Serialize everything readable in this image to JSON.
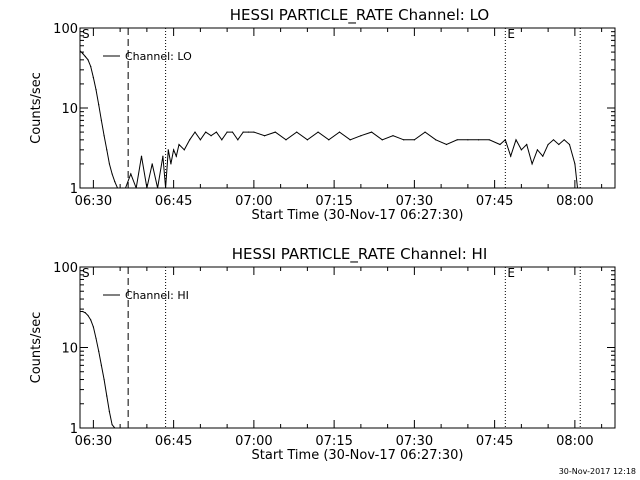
{
  "footer": {
    "timestamp": "30-Nov-2017 12:18"
  },
  "chart_data": [
    {
      "type": "line",
      "title": "HESSI PARTICLE_RATE Channel: LO",
      "xlabel": "Start Time (30-Nov-17 06:27:30)",
      "ylabel": "Counts/sec",
      "x_ticks": [
        "06:30",
        "06:45",
        "07:00",
        "07:15",
        "07:30",
        "07:45",
        "08:00"
      ],
      "y_ticks": [
        "1",
        "10",
        "100"
      ],
      "y_scale": "log",
      "xlim": [
        "06:27:30",
        "08:07:30"
      ],
      "ylim": [
        1,
        100
      ],
      "legend": {
        "label": "Channel: LO",
        "placement": "top-left"
      },
      "markers": [
        {
          "label": "S",
          "x": "06:27:30",
          "style": "solid"
        },
        {
          "x": "06:36:30",
          "style": "dashed"
        },
        {
          "x": "06:43:30",
          "style": "dotted"
        },
        {
          "label": "E",
          "x": "07:47:00",
          "style": "dotted"
        },
        {
          "x": "08:01:00",
          "style": "dotted"
        }
      ],
      "series": [
        {
          "x": [
            "06:27:30",
            "06:28:00",
            "06:28:30",
            "06:29:00",
            "06:29:30",
            "06:30:00",
            "06:30:30",
            "06:31:00",
            "06:31:30",
            "06:32:00",
            "06:32:30",
            "06:33:00",
            "06:33:30",
            "06:34:00",
            "06:34:30",
            "06:35:00",
            "06:35:30",
            "06:36:00",
            "06:37:00",
            "06:38:00",
            "06:39:00",
            "06:40:00",
            "06:41:00",
            "06:42:00",
            "06:43:00",
            "06:43:30",
            "06:44:00",
            "06:44:30",
            "06:45:00",
            "06:45:30",
            "06:46:00",
            "06:47:00",
            "06:48:00",
            "06:49:00",
            "06:50:00",
            "06:51:00",
            "06:52:00",
            "06:53:00",
            "06:54:00",
            "06:55:00",
            "06:56:00",
            "06:57:00",
            "06:58:00",
            "06:59:00",
            "07:00:00",
            "07:02:00",
            "07:04:00",
            "07:06:00",
            "07:08:00",
            "07:10:00",
            "07:12:00",
            "07:14:00",
            "07:16:00",
            "07:18:00",
            "07:20:00",
            "07:22:00",
            "07:24:00",
            "07:26:00",
            "07:28:00",
            "07:30:00",
            "07:32:00",
            "07:34:00",
            "07:36:00",
            "07:38:00",
            "07:40:00",
            "07:42:00",
            "07:44:00",
            "07:46:00",
            "07:47:00",
            "07:48:00",
            "07:49:00",
            "07:50:00",
            "07:51:00",
            "07:52:00",
            "07:53:00",
            "07:54:00",
            "07:55:00",
            "07:56:00",
            "07:57:00",
            "07:58:00",
            "07:59:00",
            "08:00:00",
            "08:00:30"
          ],
          "values": [
            52,
            48,
            44,
            40,
            33,
            24,
            17,
            11,
            7,
            4.5,
            3,
            2,
            1.5,
            1.2,
            1,
            1,
            1,
            1,
            1.5,
            1,
            2.5,
            1,
            2,
            1,
            2.5,
            1,
            3,
            2,
            3,
            2.5,
            3.5,
            3,
            4,
            5,
            4,
            5,
            4.5,
            5,
            4,
            5,
            5,
            4,
            5,
            5,
            5,
            4.5,
            5,
            4,
            5,
            4,
            5,
            4,
            5,
            4,
            4.5,
            5,
            4,
            4.5,
            4,
            4,
            5,
            4,
            3.5,
            4,
            4,
            4,
            4,
            3.5,
            4,
            2.5,
            4,
            3,
            3.5,
            2,
            3,
            2.5,
            3.5,
            4,
            3.5,
            4,
            3.5,
            2,
            1
          ]
        }
      ]
    },
    {
      "type": "line",
      "title": "HESSI PARTICLE_RATE Channel: HI",
      "xlabel": "Start Time (30-Nov-17 06:27:30)",
      "ylabel": "Counts/sec",
      "x_ticks": [
        "06:30",
        "06:45",
        "07:00",
        "07:15",
        "07:30",
        "07:45",
        "08:00"
      ],
      "y_ticks": [
        "1",
        "10",
        "100"
      ],
      "y_scale": "log",
      "xlim": [
        "06:27:30",
        "08:07:30"
      ],
      "ylim": [
        1,
        100
      ],
      "legend": {
        "label": "Channel: HI",
        "placement": "top-left"
      },
      "markers": [
        {
          "label": "S",
          "x": "06:27:30",
          "style": "solid"
        },
        {
          "x": "06:36:30",
          "style": "dashed"
        },
        {
          "x": "06:43:30",
          "style": "dotted"
        },
        {
          "label": "E",
          "x": "07:47:00",
          "style": "dotted"
        },
        {
          "x": "08:01:00",
          "style": "dotted"
        }
      ],
      "series": [
        {
          "x": [
            "06:27:30",
            "06:28:00",
            "06:28:30",
            "06:29:00",
            "06:29:30",
            "06:30:00",
            "06:30:30",
            "06:31:00",
            "06:31:30",
            "06:32:00",
            "06:32:30",
            "06:33:00",
            "06:33:30",
            "06:34:00"
          ],
          "values": [
            28,
            28,
            27,
            25,
            22,
            18,
            13,
            9,
            6,
            4,
            2.5,
            1.6,
            1.1,
            1
          ]
        }
      ]
    }
  ]
}
